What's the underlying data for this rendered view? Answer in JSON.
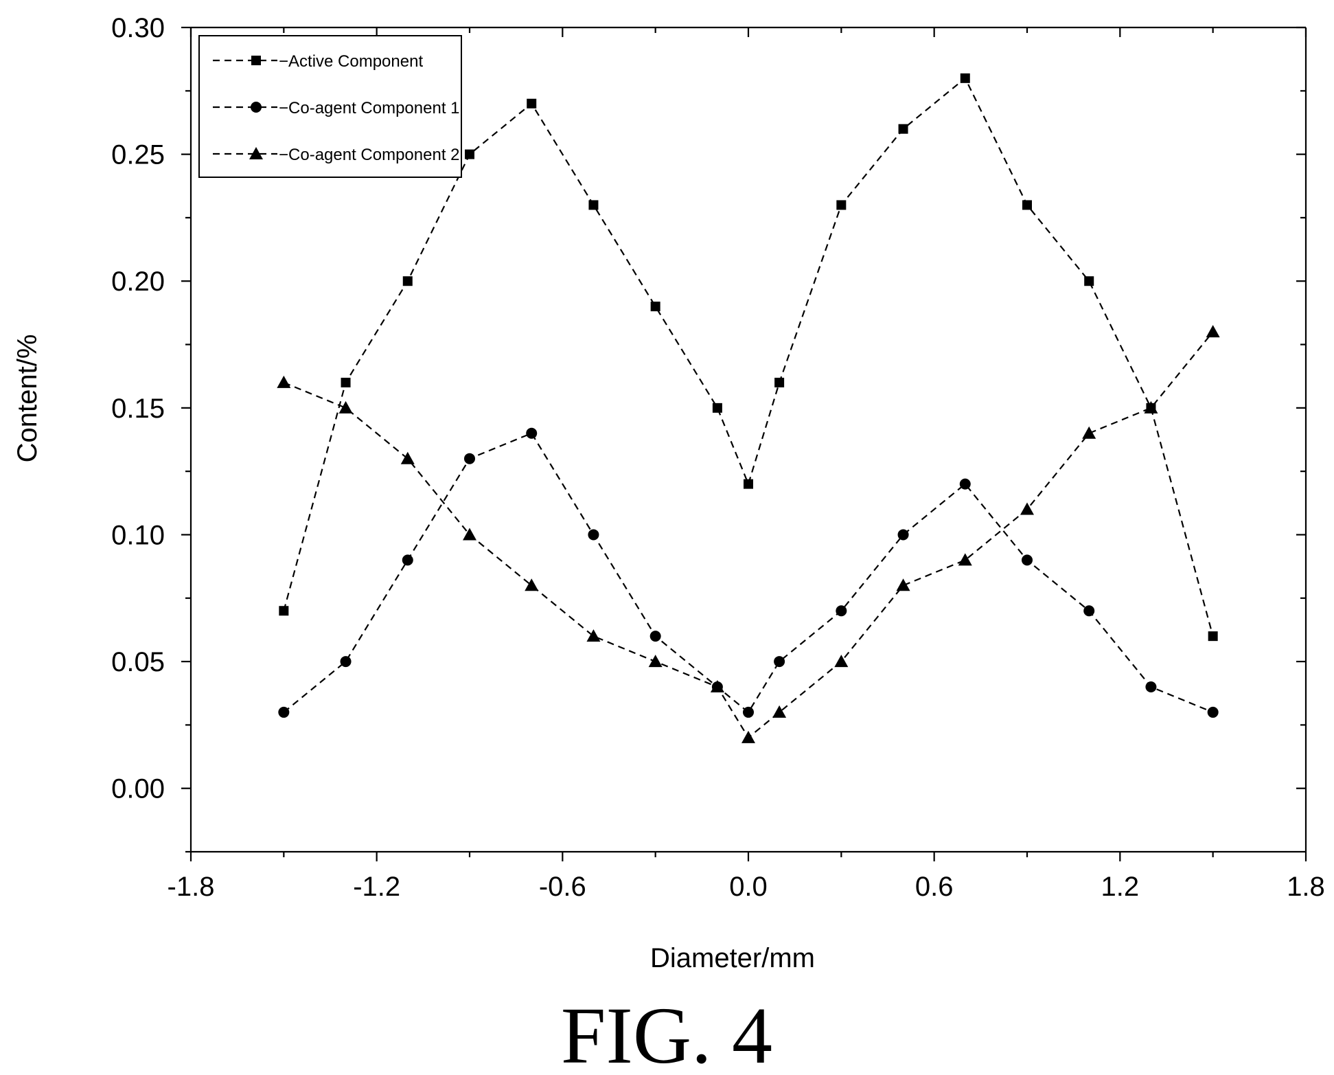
{
  "chart_data": {
    "type": "line",
    "xlabel": "Diameter/mm",
    "ylabel": "Content/%",
    "xlim": [
      -1.8,
      1.8
    ],
    "ylim": [
      -0.025,
      0.3
    ],
    "xticks": [
      -1.8,
      -1.2,
      -0.6,
      0.0,
      0.6,
      1.2,
      1.8
    ],
    "xtick_labels": [
      "-1.8",
      "-1.2",
      "-0.6",
      "0.0",
      "0.6",
      "1.2",
      "1.8"
    ],
    "yticks": [
      0.0,
      0.05,
      0.1,
      0.15,
      0.2,
      0.25,
      0.3
    ],
    "ytick_labels": [
      "0.00",
      "0.05",
      "0.10",
      "0.15",
      "0.20",
      "0.25",
      "0.30"
    ],
    "grid": false,
    "legend_position": "top-left",
    "x": [
      -1.5,
      -1.3,
      -1.1,
      -0.9,
      -0.7,
      -0.5,
      -0.3,
      -0.1,
      0.0,
      0.1,
      0.3,
      0.5,
      0.7,
      0.9,
      1.1,
      1.3,
      1.5
    ],
    "series": [
      {
        "name": "Active Component",
        "legend_label": "−Active Component",
        "marker": "square",
        "line_style": "dashed",
        "color": "#000000",
        "values": [
          0.07,
          0.16,
          0.2,
          0.25,
          0.27,
          0.23,
          0.19,
          0.15,
          0.12,
          0.16,
          0.23,
          0.26,
          0.28,
          0.23,
          0.2,
          0.15,
          0.06
        ]
      },
      {
        "name": "Co-agent Component 1",
        "legend_label": "−Co-agent Component 1",
        "marker": "circle",
        "line_style": "dashed",
        "color": "#000000",
        "values": [
          0.03,
          0.05,
          0.09,
          0.13,
          0.14,
          0.1,
          0.06,
          0.04,
          0.03,
          0.05,
          0.07,
          0.1,
          0.12,
          0.09,
          0.07,
          0.04,
          0.03
        ]
      },
      {
        "name": "Co-agent Component 2",
        "legend_label": "−Co-agent Component 2",
        "marker": "triangle",
        "line_style": "dashed",
        "color": "#000000",
        "values": [
          0.16,
          0.15,
          0.13,
          0.1,
          0.08,
          0.06,
          0.05,
          0.04,
          0.02,
          0.03,
          0.05,
          0.08,
          0.09,
          0.11,
          0.14,
          0.15,
          0.18
        ]
      }
    ]
  },
  "caption": "FIG. 4"
}
